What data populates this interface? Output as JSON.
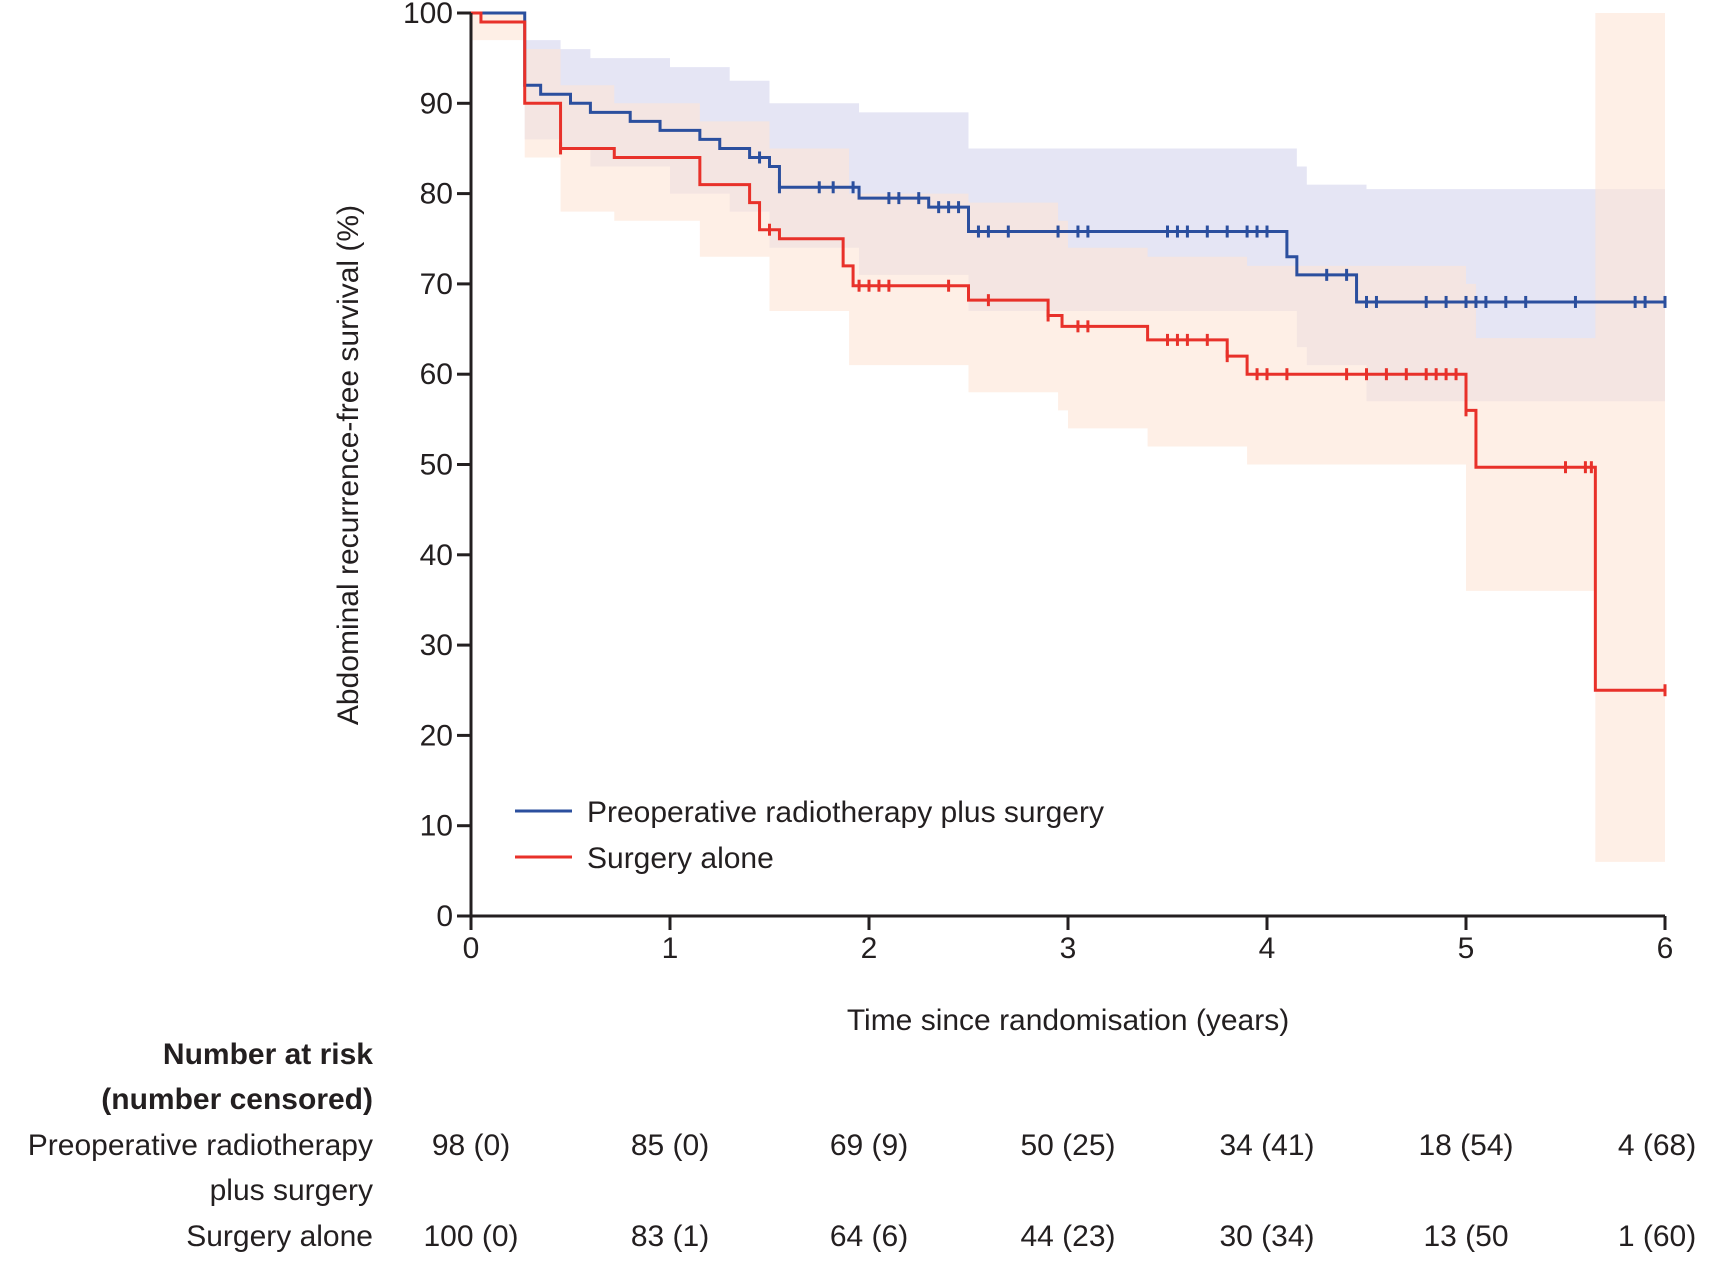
{
  "chart_data": {
    "type": "line",
    "subtype": "kaplan-meier step curves with confidence bands",
    "xlabel": "Time since randomisation (years)",
    "ylabel": "Abdominal recurrence-free survival (%)",
    "xlim": [
      0,
      6
    ],
    "ylim": [
      0,
      100
    ],
    "xticks": [
      "0",
      "1",
      "2",
      "3",
      "4",
      "5",
      "6"
    ],
    "yticks": [
      "0",
      "10",
      "20",
      "30",
      "40",
      "50",
      "60",
      "70",
      "80",
      "90",
      "100"
    ],
    "grid": false,
    "legend_position": "bottom-left",
    "series": [
      {
        "name": "Preoperative radiotherapy plus surgery",
        "color": "#2b4f9e",
        "band_color": "#dcdcf0",
        "steps": [
          [
            0,
            100
          ],
          [
            0.27,
            92
          ],
          [
            0.35,
            91
          ],
          [
            0.5,
            90
          ],
          [
            0.6,
            89
          ],
          [
            0.8,
            88
          ],
          [
            0.95,
            87
          ],
          [
            1.15,
            86
          ],
          [
            1.25,
            85
          ],
          [
            1.4,
            84
          ],
          [
            1.5,
            83
          ],
          [
            1.55,
            80.7
          ],
          [
            1.95,
            79.5
          ],
          [
            2.3,
            78.5
          ],
          [
            2.5,
            75.8
          ],
          [
            4.1,
            73
          ],
          [
            4.15,
            71
          ],
          [
            4.45,
            68
          ]
        ],
        "band": [
          [
            0,
            100,
            100
          ],
          [
            0.27,
            86,
            97
          ],
          [
            0.45,
            85,
            96
          ],
          [
            0.6,
            83,
            95
          ],
          [
            1.0,
            80,
            94
          ],
          [
            1.3,
            78,
            92.5
          ],
          [
            1.5,
            74,
            90
          ],
          [
            1.95,
            71,
            89
          ],
          [
            2.5,
            67,
            85
          ],
          [
            4.15,
            63,
            83
          ],
          [
            4.2,
            61,
            81
          ],
          [
            4.5,
            57,
            80.5
          ]
        ],
        "censored": [
          1.45,
          1.55,
          1.75,
          1.82,
          1.92,
          2.1,
          2.15,
          2.25,
          2.35,
          2.4,
          2.45,
          2.55,
          2.6,
          2.7,
          2.95,
          3.05,
          3.1,
          3.5,
          3.55,
          3.6,
          3.7,
          3.8,
          3.9,
          3.95,
          4.0,
          4.3,
          4.4,
          4.5,
          4.55,
          4.8,
          4.9,
          5.0,
          5.05,
          5.1,
          5.2,
          5.3,
          5.55,
          5.85,
          5.9,
          6.0
        ]
      },
      {
        "name": "Surgery alone",
        "color": "#e8312a",
        "band_color": "#fde5d6",
        "steps": [
          [
            0,
            100
          ],
          [
            0.05,
            99
          ],
          [
            0.27,
            90
          ],
          [
            0.45,
            85
          ],
          [
            0.72,
            84
          ],
          [
            1.15,
            81
          ],
          [
            1.4,
            79
          ],
          [
            1.45,
            76
          ],
          [
            1.55,
            75
          ],
          [
            1.87,
            72
          ],
          [
            1.92,
            69.8
          ],
          [
            2.5,
            68.2
          ],
          [
            2.9,
            66.5
          ],
          [
            2.97,
            65.3
          ],
          [
            3.4,
            63.8
          ],
          [
            3.8,
            62
          ],
          [
            3.9,
            60
          ],
          [
            5.0,
            56
          ],
          [
            5.05,
            49.7
          ],
          [
            5.65,
            25
          ]
        ],
        "band": [
          [
            0,
            97,
            100
          ],
          [
            0.27,
            84,
            96
          ],
          [
            0.45,
            78,
            92
          ],
          [
            0.72,
            77,
            90
          ],
          [
            1.15,
            73,
            88
          ],
          [
            1.5,
            67,
            85
          ],
          [
            1.9,
            61,
            80
          ],
          [
            2.5,
            58,
            79
          ],
          [
            2.95,
            56,
            77
          ],
          [
            3.0,
            54,
            74
          ],
          [
            3.4,
            52,
            73
          ],
          [
            3.9,
            50,
            72
          ],
          [
            5.0,
            36,
            70
          ],
          [
            5.05,
            36,
            64
          ],
          [
            5.65,
            6,
            100
          ]
        ],
        "censored": [
          0.45,
          1.5,
          1.95,
          2.0,
          2.05,
          2.1,
          2.4,
          2.6,
          2.9,
          3.05,
          3.1,
          3.5,
          3.55,
          3.6,
          3.7,
          3.8,
          3.95,
          4.0,
          4.1,
          4.4,
          4.5,
          4.6,
          4.7,
          4.8,
          4.85,
          4.9,
          4.95,
          5.0,
          5.5,
          5.6,
          5.63,
          6.0
        ]
      }
    ]
  },
  "risk_table": {
    "header_line1": "Number at risk",
    "header_line2": "(number censored)",
    "rows": [
      {
        "label_line1": "Preoperative radiotherapy",
        "label_line2": "plus surgery",
        "values": [
          "98 (0)",
          "85 (0)",
          "69 (9)",
          "50 (25)",
          "34 (41)",
          "18 (54)",
          "4 (68)"
        ]
      },
      {
        "label_line1": "Surgery alone",
        "label_line2": "",
        "values": [
          "100 (0)",
          "83 (1)",
          "64 (6)",
          "44 (23)",
          "30 (34)",
          "13 (50",
          "1 (60)"
        ]
      }
    ]
  }
}
